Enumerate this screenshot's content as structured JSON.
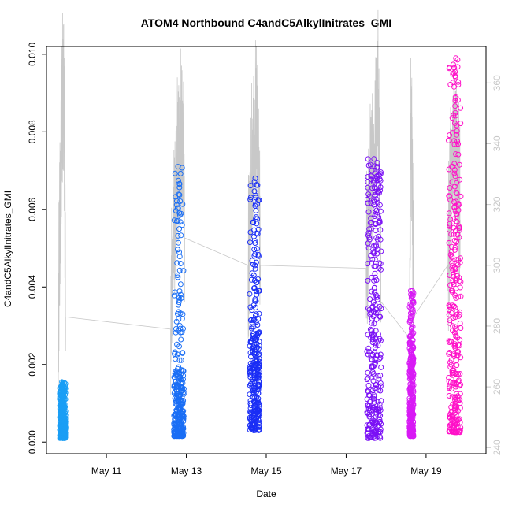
{
  "chart_data": {
    "type": "scatter",
    "title": "ATOM4 Northbound C4andC5AlkylInitrates_GMI",
    "xlabel": "Date",
    "ylabel": "C4andC5AlkylInitrates_GMI",
    "xlim": [
      "2016-05-09T12:00",
      "2016-05-20T12:00"
    ],
    "ylim": [
      -0.0003,
      0.0102
    ],
    "y2lim": [
      238,
      372
    ],
    "x_ticks": [
      {
        "date": "2016-05-11",
        "label": "May 11"
      },
      {
        "date": "2016-05-13",
        "label": "May 13"
      },
      {
        "date": "2016-05-15",
        "label": "May 15"
      },
      {
        "date": "2016-05-17",
        "label": "May 17"
      },
      {
        "date": "2016-05-19",
        "label": "May 19"
      }
    ],
    "y_ticks": [
      {
        "value": 0.0,
        "label": "0.000"
      },
      {
        "value": 0.002,
        "label": "0.002"
      },
      {
        "value": 0.004,
        "label": "0.004"
      },
      {
        "value": 0.006,
        "label": "0.006"
      },
      {
        "value": 0.008,
        "label": "0.008"
      },
      {
        "value": 0.01,
        "label": "0.010"
      }
    ],
    "y2_ticks": [
      {
        "value": 240,
        "label": "240"
      },
      {
        "value": 260,
        "label": "260"
      },
      {
        "value": 280,
        "label": "280"
      },
      {
        "value": 300,
        "label": "300"
      },
      {
        "value": 320,
        "label": "320"
      },
      {
        "value": 340,
        "label": "340"
      },
      {
        "value": 360,
        "label": "360"
      }
    ],
    "grid": false,
    "flights": [
      {
        "color": "#1a9ef5",
        "t_start": "2016-05-09T20:00",
        "t_end": "2016-05-09T23:30",
        "y_low": 0.0001,
        "y_core_high": 0.0011,
        "y_max": 0.00155
      },
      {
        "color": "#1a6ef5",
        "t_start": "2016-05-12T16:30",
        "t_end": "2016-05-12T22:30",
        "y_low": 0.00015,
        "y_core_high": 0.0019,
        "y_max": 0.0071
      },
      {
        "color": "#1a2ef5",
        "t_start": "2016-05-14T14:00",
        "t_end": "2016-05-14T20:00",
        "y_low": 0.0003,
        "y_core_high": 0.0028,
        "y_max": 0.0068
      },
      {
        "color": "#7a10f5",
        "t_start": "2016-05-17T12:30",
        "t_end": "2016-05-17T21:00",
        "y_low": 0.0001,
        "y_core_high": 0.0062,
        "y_max": 0.0073
      },
      {
        "color": "#d81af5",
        "t_start": "2016-05-18T14:00",
        "t_end": "2016-05-18T16:30",
        "y_low": 0.00015,
        "y_core_high": 0.0023,
        "y_max": 0.0039
      },
      {
        "color": "#ff10c8",
        "t_start": "2016-05-19T13:30",
        "t_end": "2016-05-19T21:00",
        "y_low": 0.00025,
        "y_core_high": 0.006,
        "y_max": 0.0099
      }
    ],
    "secondary_line": {
      "color": "#c8c8c8",
      "points": [
        {
          "t": "2016-05-09T19:00",
          "v": 275
        },
        {
          "t": "2016-05-09T20:30",
          "v": 330
        },
        {
          "t": "2016-05-09T21:30",
          "v": 355
        },
        {
          "t": "2016-05-09T22:30",
          "v": 362
        },
        {
          "t": "2016-05-09T23:30",
          "v": 283
        },
        {
          "t": "2016-05-12T14:30",
          "v": 279
        },
        {
          "t": "2016-05-12T16:00",
          "v": 305
        },
        {
          "t": "2016-05-12T18:00",
          "v": 330
        },
        {
          "t": "2016-05-12T20:00",
          "v": 340
        },
        {
          "t": "2016-05-12T22:00",
          "v": 345
        },
        {
          "t": "2016-05-12T23:00",
          "v": 309
        },
        {
          "t": "2016-05-14T13:00",
          "v": 300
        },
        {
          "t": "2016-05-14T15:00",
          "v": 330
        },
        {
          "t": "2016-05-14T17:00",
          "v": 343
        },
        {
          "t": "2016-05-14T19:00",
          "v": 349
        },
        {
          "t": "2016-05-14T20:30",
          "v": 300
        },
        {
          "t": "2016-05-17T12:00",
          "v": 299
        },
        {
          "t": "2016-05-17T14:00",
          "v": 325
        },
        {
          "t": "2016-05-17T17:00",
          "v": 340
        },
        {
          "t": "2016-05-17T19:30",
          "v": 358
        },
        {
          "t": "2016-05-17T21:00",
          "v": 288
        },
        {
          "t": "2016-05-18T14:00",
          "v": 276
        },
        {
          "t": "2016-05-18T15:00",
          "v": 359
        },
        {
          "t": "2016-05-18T16:30",
          "v": 283
        },
        {
          "t": "2016-05-19T13:00",
          "v": 300
        },
        {
          "t": "2016-05-19T15:00",
          "v": 330
        },
        {
          "t": "2016-05-19T17:00",
          "v": 342
        },
        {
          "t": "2016-05-19T19:00",
          "v": 330
        },
        {
          "t": "2016-05-19T20:30",
          "v": 315
        }
      ]
    }
  }
}
